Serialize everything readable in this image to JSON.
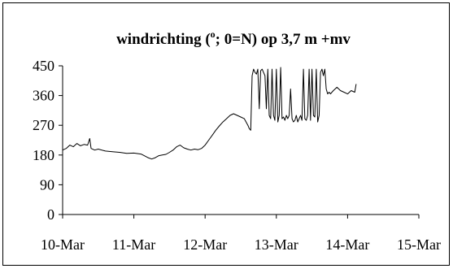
{
  "chart_data": {
    "type": "line",
    "title_main": "windrichting (",
    "title_sup": "o",
    "title_rest": "; 0=N) op 3,7 m +mv",
    "xlabel": "",
    "ylabel": "",
    "ylim": [
      0,
      450
    ],
    "yticks": [
      0,
      90,
      180,
      270,
      360,
      450
    ],
    "xlim": [
      0,
      5
    ],
    "x_tick_labels": [
      "10-Mar",
      "11-Mar",
      "12-Mar",
      "13-Mar",
      "14-Mar",
      "15-Mar"
    ],
    "grid": false,
    "legend": "none",
    "colors": {
      "line": "#000000",
      "frame": "#000000",
      "background": "#ffffff"
    },
    "series": [
      {
        "x": [
          0.0,
          0.05,
          0.1,
          0.15,
          0.2,
          0.25,
          0.3,
          0.35,
          0.38,
          0.4,
          0.45,
          0.5,
          0.6,
          0.7,
          0.8,
          0.9,
          1.0,
          1.1,
          1.2,
          1.25,
          1.3,
          1.35,
          1.4,
          1.45,
          1.5,
          1.55,
          1.6,
          1.65,
          1.7,
          1.75,
          1.8,
          1.85,
          1.9,
          1.95,
          2.0,
          2.05,
          2.1,
          2.15,
          2.2,
          2.25,
          2.3,
          2.35,
          2.4,
          2.45,
          2.5,
          2.55,
          2.6,
          2.62,
          2.64,
          2.66,
          2.68,
          2.7,
          2.72,
          2.74,
          2.76,
          2.78,
          2.8,
          2.82,
          2.84,
          2.86,
          2.88,
          2.9,
          2.92,
          2.94,
          2.96,
          2.98,
          3.0,
          3.02,
          3.04,
          3.06,
          3.08,
          3.1,
          3.12,
          3.14,
          3.16,
          3.18,
          3.2,
          3.22,
          3.24,
          3.26,
          3.28,
          3.3,
          3.32,
          3.34,
          3.36,
          3.38,
          3.4,
          3.42,
          3.44,
          3.46,
          3.48,
          3.5,
          3.52,
          3.54,
          3.56,
          3.58,
          3.6,
          3.62,
          3.64,
          3.66,
          3.68,
          3.7,
          3.72,
          3.74,
          3.76,
          3.78,
          3.8,
          3.85,
          3.9,
          3.95,
          4.0,
          4.05,
          4.1,
          4.12
        ],
        "y": [
          195,
          200,
          210,
          205,
          215,
          208,
          212,
          210,
          230,
          200,
          195,
          198,
          192,
          190,
          188,
          185,
          186,
          183,
          172,
          168,
          172,
          178,
          180,
          182,
          188,
          195,
          205,
          210,
          202,
          198,
          195,
          198,
          196,
          200,
          210,
          225,
          240,
          255,
          268,
          280,
          290,
          300,
          305,
          300,
          295,
          290,
          270,
          260,
          255,
          420,
          440,
          430,
          425,
          440,
          320,
          435,
          440,
          430,
          420,
          320,
          440,
          300,
          290,
          440,
          300,
          285,
          440,
          280,
          300,
          445,
          290,
          295,
          285,
          300,
          290,
          300,
          380,
          290,
          280,
          285,
          300,
          280,
          290,
          300,
          285,
          440,
          290,
          285,
          300,
          440,
          285,
          440,
          300,
          295,
          440,
          280,
          300,
          430,
          440,
          420,
          440,
          380,
          365,
          370,
          365,
          370,
          375,
          385,
          375,
          370,
          365,
          375,
          370,
          395
        ]
      }
    ]
  }
}
